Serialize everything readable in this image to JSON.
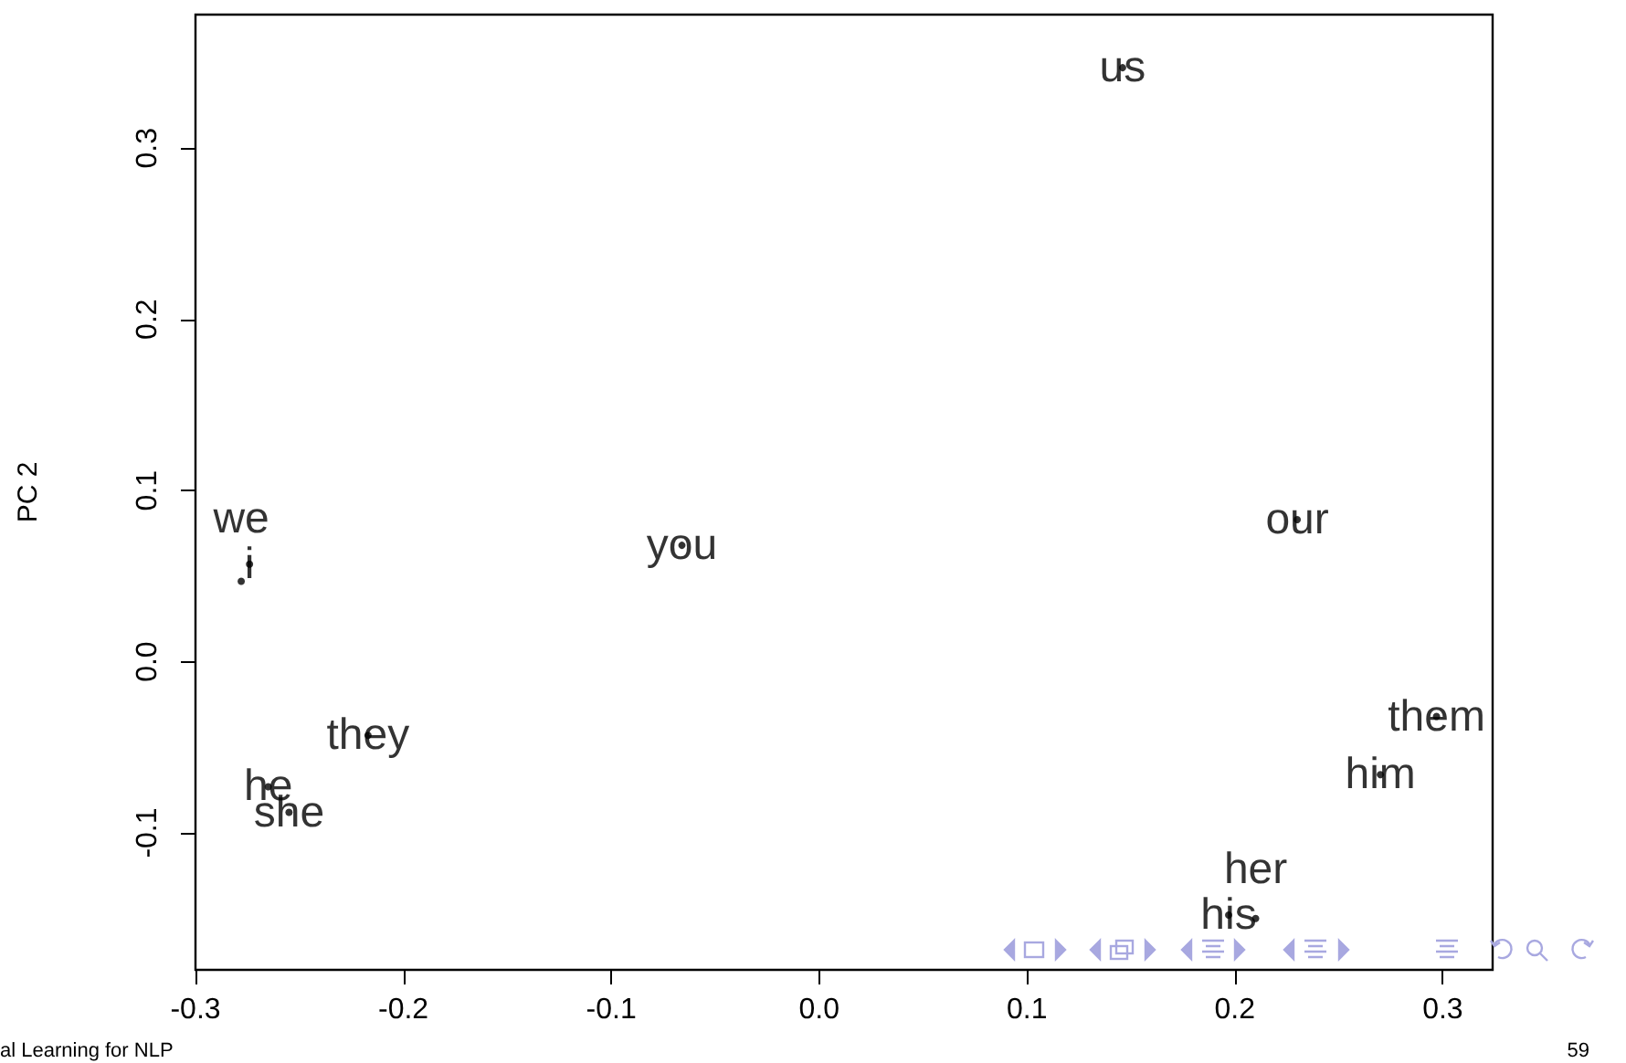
{
  "chart_data": {
    "type": "scatter",
    "ylabel": "PC 2",
    "x": [
      0.146,
      0.23,
      0.297,
      0.27,
      0.197,
      0.21,
      -0.066,
      -0.274,
      -0.278,
      -0.217,
      -0.265,
      -0.255
    ],
    "values": [
      0.347,
      0.083,
      -0.032,
      -0.066,
      -0.148,
      -0.15,
      0.068,
      0.057,
      0.047,
      -0.043,
      -0.073,
      -0.088
    ],
    "value_labels": [
      "us",
      "our",
      "them",
      "him",
      "his",
      "her",
      "you",
      "i",
      "we",
      "they",
      "he",
      "she"
    ],
    "color": "#000000",
    "marker": "circle",
    "xlim": [
      -0.3,
      0.324
    ],
    "ylim": [
      -0.18,
      0.378
    ],
    "xticks": [
      -0.3,
      -0.2,
      -0.1,
      {
        "value": 0,
        "label": "0.0"
      },
      0.1,
      0.2,
      0.3
    ],
    "yticks": [
      -0.1,
      {
        "value": 0,
        "label": "0.0"
      },
      0.1,
      0.2,
      0.3
    ],
    "grid": false,
    "annotations": [
      "al Learning for NLP",
      "59"
    ]
  }
}
